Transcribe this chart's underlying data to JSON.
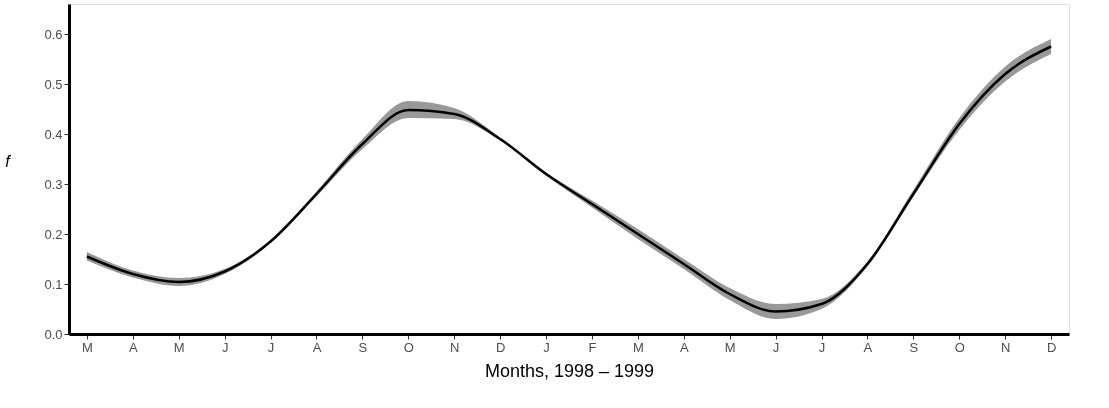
{
  "chart_data": {
    "type": "line",
    "xlabel": "Months, 1998 – 1999",
    "ylabel": "f",
    "grid": false,
    "marker": "none",
    "line_style": "solid",
    "categories": [
      "M",
      "A",
      "M",
      "J",
      "J",
      "A",
      "S",
      "O",
      "N",
      "D",
      "J",
      "F",
      "M",
      "A",
      "M",
      "J",
      "J",
      "A",
      "S",
      "O",
      "N",
      "D"
    ],
    "series": [
      {
        "color": "#000000",
        "values": [
          0.155,
          0.12,
          0.104,
          0.125,
          0.185,
          0.28,
          0.38,
          0.448,
          0.44,
          0.39,
          0.32,
          0.26,
          0.2,
          0.14,
          0.08,
          0.045,
          0.06,
          0.14,
          0.28,
          0.42,
          0.52,
          0.575
        ],
        "lower": [
          0.147,
          0.113,
          0.096,
          0.12,
          0.182,
          0.275,
          0.37,
          0.432,
          0.43,
          0.387,
          0.317,
          0.253,
          0.19,
          0.13,
          0.068,
          0.03,
          0.05,
          0.135,
          0.275,
          0.408,
          0.505,
          0.56
        ],
        "upper": [
          0.164,
          0.127,
          0.112,
          0.13,
          0.188,
          0.285,
          0.39,
          0.466,
          0.452,
          0.393,
          0.323,
          0.267,
          0.21,
          0.15,
          0.092,
          0.06,
          0.07,
          0.145,
          0.288,
          0.432,
          0.535,
          0.59
        ]
      }
    ],
    "ylim": [
      0,
      0.66
    ],
    "yticks": [
      {
        "value": 0,
        "label": "0.0"
      },
      {
        "value": 0.1,
        "label": "0.1"
      },
      {
        "value": 0.2,
        "label": "0.2"
      },
      {
        "value": 0.3,
        "label": "0.3"
      },
      {
        "value": 0.4,
        "label": "0.4"
      },
      {
        "value": 0.5,
        "label": "0.5"
      },
      {
        "value": 0.6,
        "label": "0.6"
      }
    ]
  }
}
